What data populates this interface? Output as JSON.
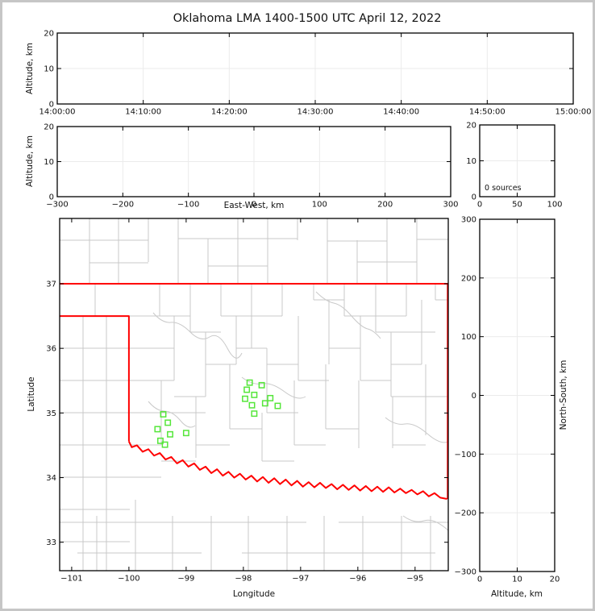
{
  "title": "Oklahoma LMA 1400-1500 UTC April 12, 2022",
  "colors": {
    "state_border": "#ff0000",
    "station_marker": "#55e63a",
    "county_line": "#c9c9c9",
    "grid": "#ebebeb",
    "axis": "#000000"
  },
  "chart_data": [
    {
      "id": "time-height-panel",
      "type": "scatter",
      "title": "",
      "xlabel": "",
      "ylabel": "Altitude, km",
      "xlim": [
        0,
        3600
      ],
      "ylim": [
        0,
        20
      ],
      "grid": true,
      "x_ticks": {
        "values": [
          0,
          600,
          1200,
          1800,
          2400,
          3000,
          3600
        ],
        "labels": [
          "14:00:00",
          "14:10:00",
          "14:20:00",
          "14:30:00",
          "14:40:00",
          "14:50:00",
          "15:00:00"
        ]
      },
      "y_ticks": {
        "values": [
          0,
          10,
          20
        ],
        "labels": [
          "0",
          "10",
          "20"
        ]
      },
      "points": []
    },
    {
      "id": "east-west-panel",
      "type": "scatter",
      "title": "",
      "xlabel": "East-West, km",
      "ylabel": "Altitude, km",
      "xlim": [
        -300,
        300
      ],
      "ylim": [
        0,
        20
      ],
      "grid": true,
      "x_ticks": {
        "values": [
          -300,
          -200,
          -100,
          0,
          100,
          200,
          300
        ],
        "labels": [
          "−300",
          "−200",
          "−100",
          "0",
          "100",
          "200",
          "300"
        ]
      },
      "y_ticks": {
        "values": [
          0,
          10,
          20
        ],
        "labels": [
          "0",
          "10",
          "20"
        ]
      },
      "points": []
    },
    {
      "id": "source-count-panel",
      "type": "scatter",
      "title": "",
      "xlabel": "",
      "ylabel": "",
      "annotation": "0 sources",
      "xlim": [
        0,
        100
      ],
      "ylim": [
        0,
        20
      ],
      "grid": true,
      "x_ticks": {
        "values": [
          0,
          50,
          100
        ],
        "labels": [
          "0",
          "50",
          "100"
        ]
      },
      "y_ticks": {
        "values": [
          0,
          10,
          20
        ],
        "labels": [
          "0",
          "10",
          "20"
        ]
      },
      "points": []
    },
    {
      "id": "plan-view-map",
      "type": "scatter",
      "title": "",
      "xlabel": "Longitude",
      "ylabel": "Latitude",
      "xlim": [
        -101.21,
        -94.42
      ],
      "ylim": [
        32.56,
        38.01
      ],
      "grid": false,
      "x_ticks": {
        "values": [
          -101,
          -100,
          -99,
          -98,
          -97,
          -96,
          -95
        ],
        "labels": [
          "−101",
          "−100",
          "−99",
          "−98",
          "−97",
          "−96",
          "−95"
        ]
      },
      "y_ticks": {
        "values": [
          33,
          34,
          35,
          36,
          37
        ],
        "labels": [
          "33",
          "34",
          "35",
          "36",
          "37"
        ]
      },
      "stations": [
        {
          "lon": -99.4,
          "lat": 34.98
        },
        {
          "lon": -99.32,
          "lat": 34.85
        },
        {
          "lon": -99.5,
          "lat": 34.75
        },
        {
          "lon": -99.28,
          "lat": 34.67
        },
        {
          "lon": -99.0,
          "lat": 34.69
        },
        {
          "lon": -99.45,
          "lat": 34.57
        },
        {
          "lon": -99.37,
          "lat": 34.51
        },
        {
          "lon": -97.89,
          "lat": 35.47
        },
        {
          "lon": -97.68,
          "lat": 35.43
        },
        {
          "lon": -97.94,
          "lat": 35.36
        },
        {
          "lon": -97.81,
          "lat": 35.28
        },
        {
          "lon": -97.97,
          "lat": 35.22
        },
        {
          "lon": -97.53,
          "lat": 35.23
        },
        {
          "lon": -97.62,
          "lat": 35.15
        },
        {
          "lon": -97.85,
          "lat": 35.12
        },
        {
          "lon": -97.4,
          "lat": 35.11
        },
        {
          "lon": -97.81,
          "lat": 34.99
        }
      ],
      "state_border_paths": [
        [
          [
            -101.21,
            37.0
          ],
          [
            -94.43,
            37.0
          ],
          [
            -94.43,
            33.67
          ]
        ],
        [
          [
            -101.21,
            36.5
          ],
          [
            -100.0,
            36.5
          ],
          [
            -100.0,
            34.56
          ]
        ],
        [
          [
            -100.0,
            34.56
          ],
          [
            -99.95,
            34.47
          ],
          [
            -99.86,
            34.5
          ],
          [
            -99.76,
            34.4
          ],
          [
            -99.66,
            34.44
          ],
          [
            -99.56,
            34.34
          ],
          [
            -99.46,
            34.38
          ],
          [
            -99.36,
            34.28
          ],
          [
            -99.26,
            34.32
          ],
          [
            -99.16,
            34.22
          ],
          [
            -99.06,
            34.27
          ],
          [
            -98.96,
            34.17
          ],
          [
            -98.86,
            34.22
          ],
          [
            -98.76,
            34.12
          ],
          [
            -98.66,
            34.17
          ],
          [
            -98.56,
            34.07
          ],
          [
            -98.46,
            34.13
          ],
          [
            -98.36,
            34.03
          ],
          [
            -98.26,
            34.09
          ],
          [
            -98.16,
            34.0
          ],
          [
            -98.06,
            34.06
          ],
          [
            -97.96,
            33.97
          ],
          [
            -97.86,
            34.03
          ],
          [
            -97.76,
            33.94
          ],
          [
            -97.66,
            34.01
          ],
          [
            -97.56,
            33.92
          ],
          [
            -97.46,
            33.99
          ],
          [
            -97.36,
            33.9
          ],
          [
            -97.26,
            33.97
          ],
          [
            -97.16,
            33.88
          ],
          [
            -97.06,
            33.95
          ],
          [
            -96.96,
            33.86
          ],
          [
            -96.86,
            33.93
          ],
          [
            -96.76,
            33.85
          ],
          [
            -96.66,
            33.92
          ],
          [
            -96.56,
            33.84
          ],
          [
            -96.46,
            33.9
          ],
          [
            -96.36,
            33.82
          ],
          [
            -96.26,
            33.89
          ],
          [
            -96.16,
            33.81
          ],
          [
            -96.06,
            33.88
          ],
          [
            -95.96,
            33.8
          ],
          [
            -95.86,
            33.87
          ],
          [
            -95.76,
            33.79
          ],
          [
            -95.66,
            33.86
          ],
          [
            -95.56,
            33.78
          ],
          [
            -95.46,
            33.85
          ],
          [
            -95.36,
            33.77
          ],
          [
            -95.26,
            33.83
          ],
          [
            -95.16,
            33.76
          ],
          [
            -95.06,
            33.81
          ],
          [
            -94.96,
            33.74
          ],
          [
            -94.86,
            33.79
          ],
          [
            -94.76,
            33.71
          ],
          [
            -94.66,
            33.76
          ],
          [
            -94.56,
            33.69
          ],
          [
            -94.44,
            33.67
          ]
        ]
      ]
    },
    {
      "id": "north-south-panel",
      "type": "scatter",
      "title": "",
      "xlabel": "Altitude, km",
      "ylabel": "North-South, km",
      "xlim": [
        0,
        20
      ],
      "ylim": [
        -300,
        300
      ],
      "grid": true,
      "x_ticks": {
        "values": [
          0,
          10,
          20
        ],
        "labels": [
          "0",
          "10",
          "20"
        ]
      },
      "y_ticks": {
        "values": [
          300,
          200,
          100,
          0,
          -100,
          -200,
          -300
        ],
        "labels": [
          "300",
          "200",
          "100",
          "0",
          "−100",
          "−200",
          "−300"
        ]
      },
      "points": []
    }
  ]
}
